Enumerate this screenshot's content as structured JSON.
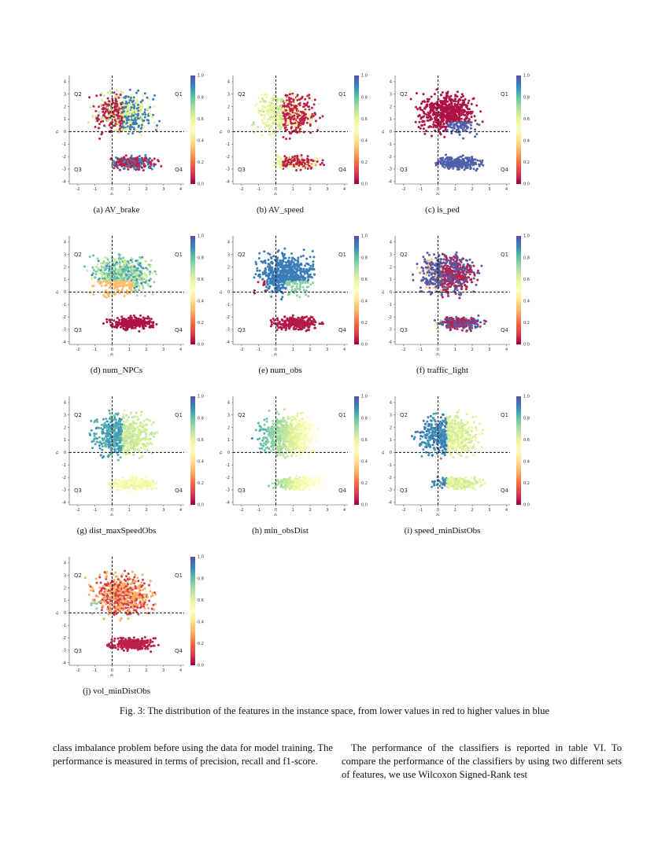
{
  "figure": {
    "caption": "Fig. 3: The distribution of the features in the instance space, from lower values in red to higher values in blue",
    "x_axis_label": "z₁",
    "y_axis_label": "z₂",
    "x_ticks": [
      "-2",
      "-1",
      "0",
      "1",
      "2",
      "3",
      "4"
    ],
    "y_ticks": [
      "4",
      "3",
      "2",
      "1",
      "0",
      "-1",
      "-2",
      "-3",
      "-4"
    ],
    "colorbar_ticks": [
      "1.0",
      "0.8",
      "0.6",
      "0.4",
      "0.2",
      "0.0"
    ],
    "quadrants": {
      "q1": "Q1",
      "q2": "Q2",
      "q3": "Q3",
      "q4": "Q4"
    },
    "colors": {
      "low": "#b2183b",
      "high": "#3d55a8"
    },
    "panels": [
      {
        "id": "a",
        "caption": "(a) AV_brake",
        "pattern": "mixed_red"
      },
      {
        "id": "b",
        "caption": "(b) AV_speed",
        "pattern": "yellow_red_right"
      },
      {
        "id": "c",
        "caption": "(c) is_ped",
        "pattern": "red_top_blue_bottom"
      },
      {
        "id": "d",
        "caption": "(d) num_NPCs",
        "pattern": "teal_top_orange_mid_red_bottom"
      },
      {
        "id": "e",
        "caption": "(e) num_obs",
        "pattern": "blue_top_red_left_red_bottom"
      },
      {
        "id": "f",
        "caption": "(f) traffic_light",
        "pattern": "purple_red_mixed"
      },
      {
        "id": "g",
        "caption": "(g) dist_maxSpeedObs",
        "pattern": "teal_yellow"
      },
      {
        "id": "h",
        "caption": "(h) min_obsDist",
        "pattern": "blue_left_yellow_right"
      },
      {
        "id": "i",
        "caption": "(i) speed_minDistObs",
        "pattern": "teal_yellow_sparse"
      },
      {
        "id": "j",
        "caption": "(j) vol_minDistObs",
        "pattern": "orange_red"
      }
    ]
  },
  "body": {
    "left_paragraph": "class imbalance problem before using the data for model training. The performance is measured in terms of precision, recall and f1-score.",
    "right_paragraph": "The performance of the classifiers is reported in table VI. To compare the performance of the classifiers by using two different sets of features, we use Wilcoxon Signed-Rank test"
  }
}
